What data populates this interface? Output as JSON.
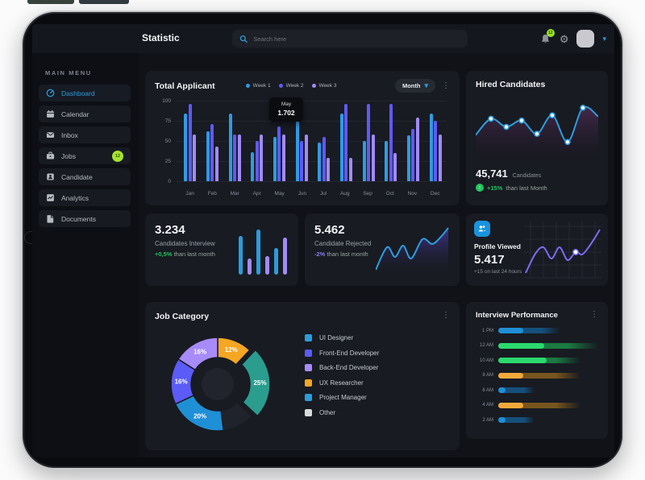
{
  "topbar": {
    "title": "Statistic",
    "search_placeholder": "Search here",
    "notif_badge": "12"
  },
  "sidebar": {
    "section": "MAIN MENU",
    "items": [
      {
        "label": "Dashboard",
        "icon": "dashboard-icon",
        "active": true
      },
      {
        "label": "Calendar",
        "icon": "calendar-icon",
        "active": false
      },
      {
        "label": "Inbox",
        "icon": "inbox-icon",
        "active": false
      },
      {
        "label": "Jobs",
        "icon": "jobs-icon",
        "active": false,
        "badge": "12"
      },
      {
        "label": "Candidate",
        "icon": "candidate-icon",
        "active": false
      },
      {
        "label": "Analytics",
        "icon": "analytics-icon",
        "active": false
      },
      {
        "label": "Documents",
        "icon": "documents-icon",
        "active": false
      }
    ]
  },
  "total_applicant": {
    "title": "Total Applicant",
    "period": "Month",
    "tooltip": {
      "month": "May",
      "value": "1.702"
    },
    "legend": [
      {
        "label": "Week 1",
        "color": "#2e9be5"
      },
      {
        "label": "Week 2",
        "color": "#6159f6"
      },
      {
        "label": "Week 3",
        "color": "#a18bf5"
      }
    ],
    "chart": {
      "type": "bar",
      "categories": [
        "Jan",
        "Feb",
        "Mar",
        "Apr",
        "May",
        "Jun",
        "Jul",
        "Aug",
        "Sep",
        "Oct",
        "Nov",
        "Dec"
      ],
      "yticks": [
        0,
        25,
        50,
        75,
        100
      ],
      "ylim": [
        0,
        100
      ],
      "series": [
        {
          "name": "Week 1",
          "color": "#2e9be5",
          "values": [
            84,
            62,
            84,
            36,
            55,
            84,
            48,
            84,
            50,
            50,
            57,
            84
          ]
        },
        {
          "name": "Week 2",
          "color": "#6159f6",
          "values": [
            96,
            71,
            58,
            50,
            68,
            50,
            55,
            96,
            96,
            96,
            65,
            75
          ]
        },
        {
          "name": "Week 3",
          "color": "#a18bf5",
          "values": [
            58,
            43,
            58,
            58,
            58,
            58,
            29,
            29,
            58,
            35,
            79,
            58
          ]
        }
      ]
    }
  },
  "hired": {
    "title": "Hired Candidates",
    "value": "45,741",
    "unit": "Candidates",
    "delta": "+15%",
    "delta_suffix": "than last Month",
    "chart": {
      "type": "line",
      "values": [
        38,
        66,
        52,
        63,
        40,
        72,
        26,
        85,
        70
      ],
      "dot_indices": [
        1,
        2,
        3,
        4,
        5,
        6,
        7
      ]
    }
  },
  "cards": {
    "interview": {
      "value": "3.234",
      "label": "Candidates Interview",
      "delta": "+0,5%",
      "suffix": "than last month",
      "chart": {
        "type": "bar",
        "values": [
          75,
          32,
          88,
          36,
          52,
          72
        ],
        "colors": [
          "#2d9cdb",
          "#a18bf5",
          "#2d9cdb",
          "#a18bf5",
          "#2d9cdb",
          "#a18bf5"
        ]
      }
    },
    "rejected": {
      "value": "5.462",
      "label": "Candidate Rejected",
      "delta": "-2%",
      "suffix": "than last month",
      "chart": {
        "type": "area",
        "points": [
          [
            0,
            54
          ],
          [
            14,
            26
          ],
          [
            24,
            38
          ],
          [
            34,
            24
          ],
          [
            44,
            40
          ],
          [
            58,
            16
          ],
          [
            70,
            22
          ],
          [
            80,
            14
          ],
          [
            90,
            2
          ]
        ]
      }
    },
    "profile": {
      "label": "Profile Viewed",
      "value": "5.417",
      "suffix": "+15 on last 24 hours",
      "chart": {
        "type": "line",
        "points": [
          [
            2,
            66
          ],
          [
            14,
            42
          ],
          [
            24,
            34
          ],
          [
            34,
            48
          ],
          [
            44,
            34
          ],
          [
            54,
            50
          ],
          [
            64,
            40
          ],
          [
            72,
            43
          ],
          [
            80,
            34
          ],
          [
            88,
            22
          ],
          [
            94,
            12
          ]
        ],
        "dot_index": 6
      }
    }
  },
  "job_category": {
    "title": "Job Category",
    "chart": {
      "type": "pie",
      "slices": [
        {
          "pct": 12,
          "color": "#f5a623",
          "label": "12%"
        },
        {
          "pct": 25,
          "color": "#2a9d8f",
          "label": "25%",
          "explode": true
        },
        {
          "pct": 11,
          "color": "#20232b",
          "label": ""
        },
        {
          "pct": 20,
          "color": "#1f8fd6",
          "label": "20%"
        },
        {
          "pct": 16,
          "color": "#5b5bf7",
          "label": "16%"
        },
        {
          "pct": 16,
          "color": "#a78bfa",
          "label": "16%"
        }
      ]
    },
    "legend": [
      {
        "label": "UI Designer",
        "color": "#2d9cdb"
      },
      {
        "label": "Front-End Developer",
        "color": "#5b5bf7"
      },
      {
        "label": "Back-End Developer",
        "color": "#a78bfa"
      },
      {
        "label": "UX Researcher",
        "color": "#f5a623"
      },
      {
        "label": "Project Manager",
        "color": "#2d9cdb"
      },
      {
        "label": "Other",
        "color": "#d9d9d9"
      }
    ]
  },
  "interview_performance": {
    "title": "Interview Performance",
    "rows": [
      {
        "time": "1 PM",
        "color": "blue",
        "bright": 25,
        "total": 62
      },
      {
        "time": "12 AM",
        "color": "green",
        "bright": 46,
        "total": 100
      },
      {
        "time": "10 AM",
        "color": "green",
        "bright": 48,
        "total": 82
      },
      {
        "time": "8 AM",
        "color": "orange",
        "bright": 25,
        "total": 82
      },
      {
        "time": "6 AM",
        "color": "blue",
        "bright": 7,
        "total": 36
      },
      {
        "time": "4 AM",
        "color": "orange",
        "bright": 25,
        "total": 82
      },
      {
        "time": "2 AM",
        "color": "blue",
        "bright": 7,
        "total": 36
      }
    ],
    "palette": {
      "blue": [
        "#1f8fd6",
        "#15507c"
      ],
      "green": [
        "#2bd96d",
        "#1b7a42"
      ],
      "orange": [
        "#f2a93b",
        "#77551e"
      ]
    }
  }
}
